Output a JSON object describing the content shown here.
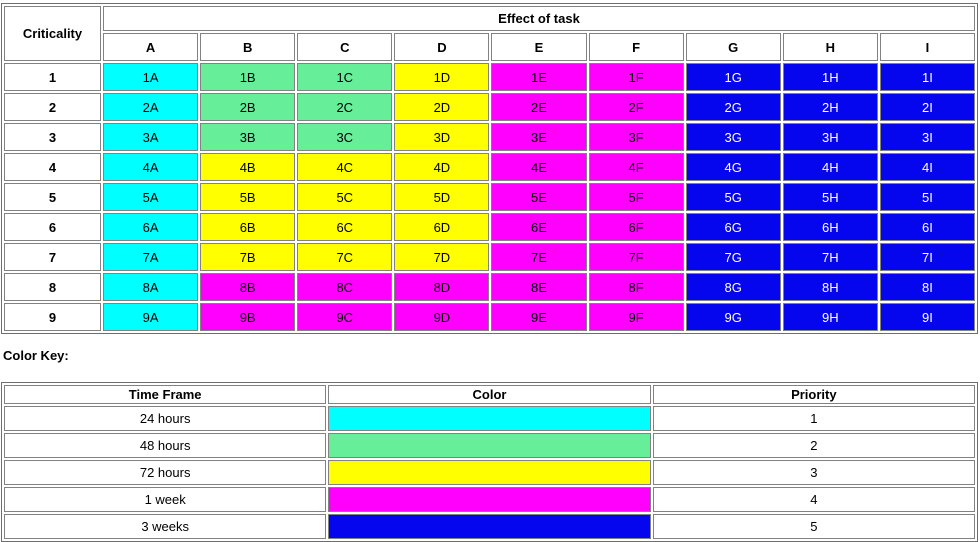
{
  "colors": {
    "cyan": "#00FFFF",
    "green": "#66EE99",
    "yellow": "#FFFF00",
    "magenta": "#FF00FF",
    "blue": "#0505EE"
  },
  "text_colors": {
    "blue": "#FFFFFF",
    "default": "#000000"
  },
  "matrix": {
    "criticality_header": "Criticality",
    "effect_header": "Effect of task",
    "columns": [
      "A",
      "B",
      "C",
      "D",
      "E",
      "F",
      "G",
      "H",
      "I"
    ],
    "rows": [
      {
        "criticality": "1",
        "labels": [
          "1A",
          "1B",
          "1C",
          "1D",
          "1E",
          "1F",
          "1G",
          "1H",
          "1I"
        ],
        "colors": [
          "cyan",
          "green",
          "green",
          "yellow",
          "magenta",
          "magenta",
          "blue",
          "blue",
          "blue"
        ]
      },
      {
        "criticality": "2",
        "labels": [
          "2A",
          "2B",
          "2C",
          "2D",
          "2E",
          "2F",
          "2G",
          "2H",
          "2I"
        ],
        "colors": [
          "cyan",
          "green",
          "green",
          "yellow",
          "magenta",
          "magenta",
          "blue",
          "blue",
          "blue"
        ]
      },
      {
        "criticality": "3",
        "labels": [
          "3A",
          "3B",
          "3C",
          "3D",
          "3E",
          "3F",
          "3G",
          "3H",
          "3I"
        ],
        "colors": [
          "cyan",
          "green",
          "green",
          "yellow",
          "magenta",
          "magenta",
          "blue",
          "blue",
          "blue"
        ]
      },
      {
        "criticality": "4",
        "labels": [
          "4A",
          "4B",
          "4C",
          "4D",
          "4E",
          "4F",
          "4G",
          "4H",
          "4I"
        ],
        "colors": [
          "cyan",
          "yellow",
          "yellow",
          "yellow",
          "magenta",
          "magenta",
          "blue",
          "blue",
          "blue"
        ]
      },
      {
        "criticality": "5",
        "labels": [
          "5A",
          "5B",
          "5C",
          "5D",
          "5E",
          "5F",
          "5G",
          "5H",
          "5I"
        ],
        "colors": [
          "cyan",
          "yellow",
          "yellow",
          "yellow",
          "magenta",
          "magenta",
          "blue",
          "blue",
          "blue"
        ]
      },
      {
        "criticality": "6",
        "labels": [
          "6A",
          "6B",
          "6C",
          "6D",
          "6E",
          "6F",
          "6G",
          "6H",
          "6I"
        ],
        "colors": [
          "cyan",
          "yellow",
          "yellow",
          "yellow",
          "magenta",
          "magenta",
          "blue",
          "blue",
          "blue"
        ]
      },
      {
        "criticality": "7",
        "labels": [
          "7A",
          "7B",
          "7C",
          "7D",
          "7E",
          "7F",
          "7G",
          "7H",
          "7I"
        ],
        "colors": [
          "cyan",
          "yellow",
          "yellow",
          "yellow",
          "magenta",
          "magenta",
          "blue",
          "blue",
          "blue"
        ]
      },
      {
        "criticality": "8",
        "labels": [
          "8A",
          "8B",
          "8C",
          "8D",
          "8E",
          "8F",
          "8G",
          "8H",
          "8I"
        ],
        "colors": [
          "cyan",
          "magenta",
          "magenta",
          "magenta",
          "magenta",
          "magenta",
          "blue",
          "blue",
          "blue"
        ]
      },
      {
        "criticality": "9",
        "labels": [
          "9A",
          "9B",
          "9C",
          "9D",
          "9E",
          "9F",
          "9G",
          "9H",
          "9I"
        ],
        "colors": [
          "cyan",
          "magenta",
          "magenta",
          "magenta",
          "magenta",
          "magenta",
          "blue",
          "blue",
          "blue"
        ]
      }
    ]
  },
  "color_key": {
    "heading": "Color Key:",
    "headers": [
      "Time Frame",
      "Color",
      "Priority"
    ],
    "rows": [
      {
        "time_frame": "24 hours",
        "color": "cyan",
        "priority": "1"
      },
      {
        "time_frame": "48 hours",
        "color": "green",
        "priority": "2"
      },
      {
        "time_frame": "72 hours",
        "color": "yellow",
        "priority": "3"
      },
      {
        "time_frame": "1 week",
        "color": "magenta",
        "priority": "4"
      },
      {
        "time_frame": "3 weeks",
        "color": "blue",
        "priority": "5"
      }
    ]
  }
}
